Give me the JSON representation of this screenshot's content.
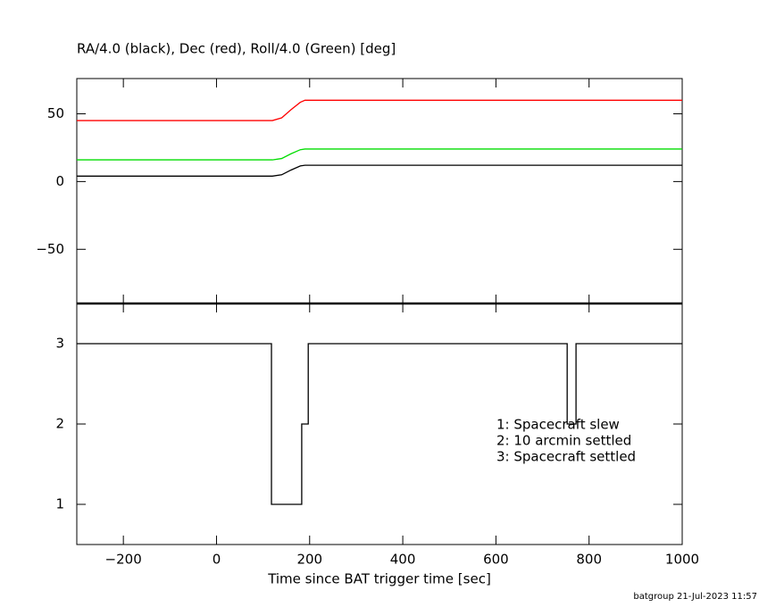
{
  "chart_data": [
    {
      "type": "line",
      "title": "RA/4.0 (black), Dec (red), Roll/4.0 (Green) [deg]",
      "x": [
        -300,
        120,
        140,
        160,
        180,
        190,
        750,
        770,
        1000
      ],
      "series": [
        {
          "color": "#ff0000",
          "values": [
            45,
            45,
            47,
            53,
            58.5,
            60,
            60,
            60,
            60
          ]
        },
        {
          "color": "#00dd00",
          "values": [
            16,
            16,
            17,
            20.5,
            23.5,
            24,
            24,
            24,
            24
          ]
        },
        {
          "color": "#000000",
          "values": [
            4,
            4,
            5,
            8.5,
            11.5,
            12,
            12,
            12,
            12
          ]
        }
      ],
      "xlim": [
        -300,
        1000
      ],
      "ylim": [
        -90,
        76
      ],
      "yticks": [
        {
          "value": -50,
          "label": "−50"
        },
        0,
        50
      ]
    },
    {
      "type": "line",
      "xlabel": "Time since BAT trigger time [sec]",
      "x": [
        -300,
        118,
        118,
        183,
        183,
        197,
        197,
        753,
        753,
        772,
        772,
        1000
      ],
      "series": [
        {
          "color": "#000000",
          "values": [
            3,
            3,
            1,
            1,
            2,
            2,
            3,
            3,
            2,
            2,
            3,
            3
          ]
        }
      ],
      "xlim": [
        -300,
        1000
      ],
      "ylim": [
        0.5,
        3.5
      ],
      "xticks": [
        {
          "value": -200,
          "label": "−200"
        },
        0,
        200,
        400,
        600,
        800,
        1000
      ],
      "yticks": [
        1,
        2,
        3
      ],
      "annotations": [
        "1: Spacecraft slew",
        "2: 10 arcmin settled",
        "3: Spacecraft settled"
      ]
    }
  ],
  "footer": "batgroup 21-Jul-2023 11:57"
}
